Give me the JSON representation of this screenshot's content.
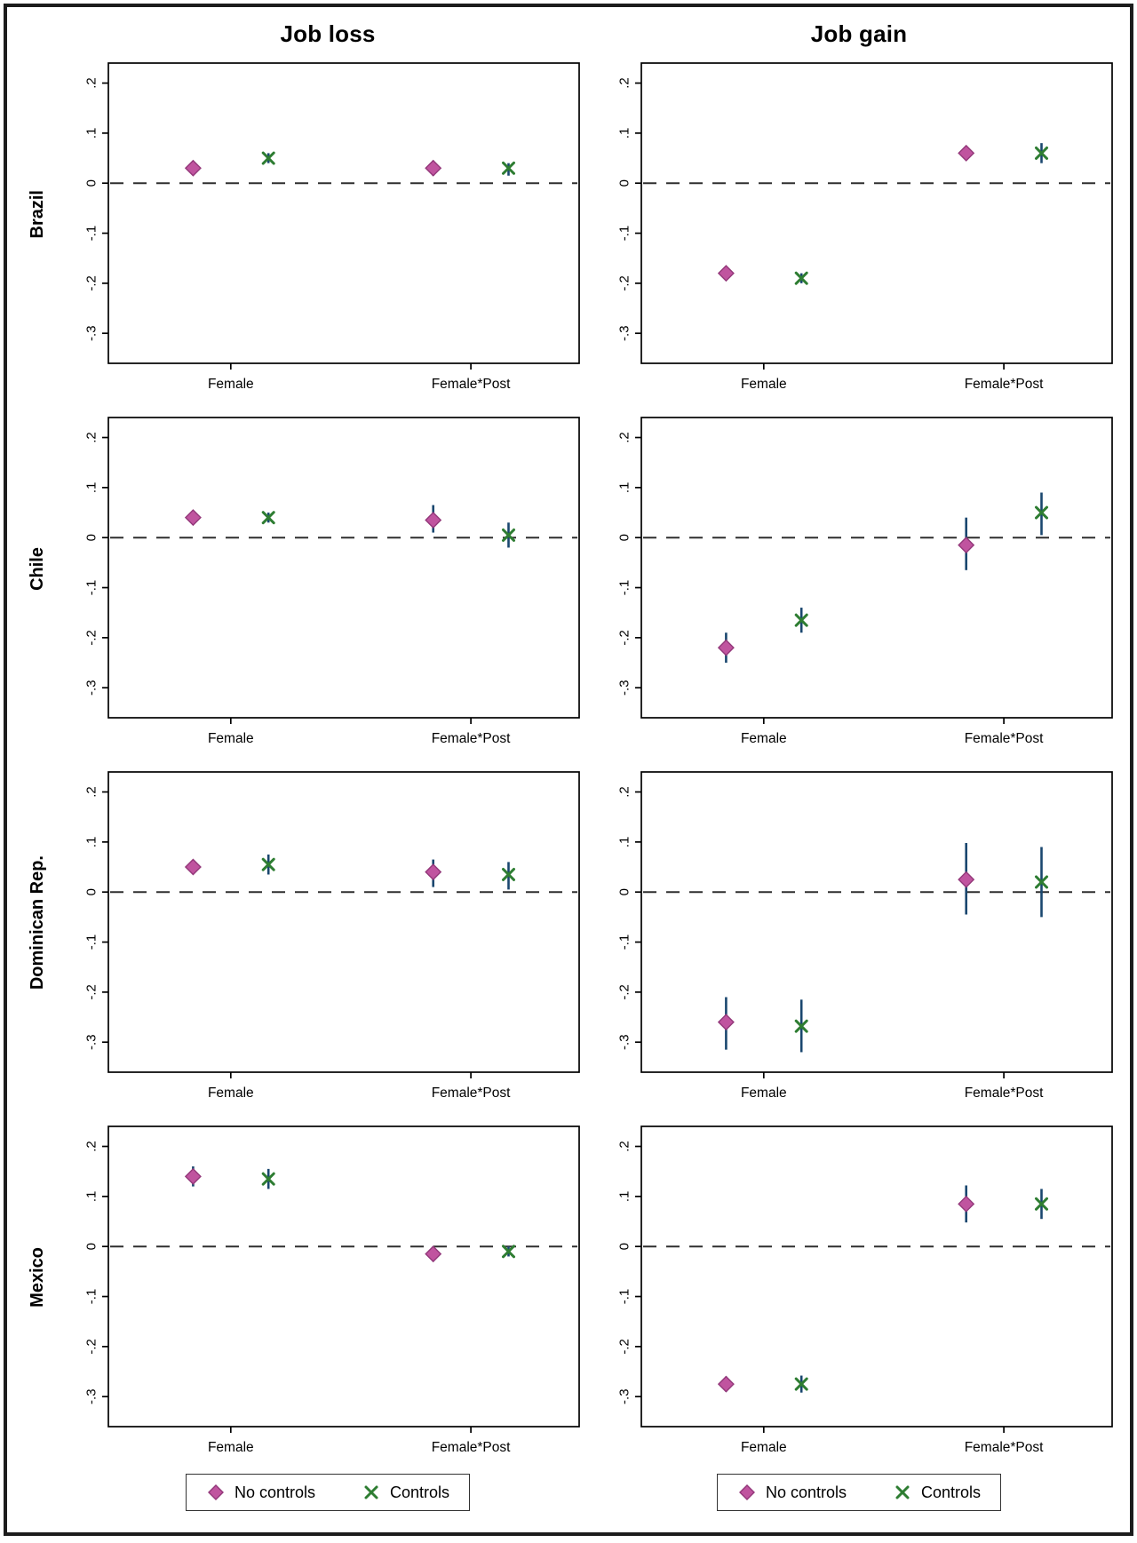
{
  "columns": [
    {
      "title": "Job loss"
    },
    {
      "title": "Job gain"
    }
  ],
  "rows": [
    {
      "label": "Brazil"
    },
    {
      "label": "Chile"
    },
    {
      "label": "Dominican Rep."
    },
    {
      "label": "Mexico"
    }
  ],
  "legend": {
    "items": [
      {
        "label": "No controls",
        "marker": "diamond"
      },
      {
        "label": "Controls",
        "marker": "x"
      }
    ]
  },
  "colors": {
    "no_controls": "#c0549f",
    "no_controls_edge": "#93387a",
    "controls": "#2e7d32",
    "ci": "#1a476f",
    "zero_line": "#2f2f2f",
    "axis": "#000000",
    "border": "#1c1c1c"
  },
  "chart_data": {
    "type": "scatter",
    "layout": "4 rows (countries) x 2 columns (outcomes), coefficient plots with 95% CI bars and dashed zero line",
    "x_categories": [
      "Female",
      "Female*Post"
    ],
    "series": [
      {
        "name": "No controls",
        "marker": "diamond",
        "color": "#c0549f"
      },
      {
        "name": "Controls",
        "marker": "x",
        "color": "#2e7d32"
      }
    ],
    "axes": {
      "ylim": [
        -0.36,
        0.24
      ],
      "y_ticks": [
        0.2,
        0.1,
        0,
        -0.1,
        -0.2,
        -0.3
      ],
      "y_tick_labels": [
        ".2",
        ".1",
        "0",
        "-.1",
        "-.2",
        "-.3"
      ],
      "x_positions": [
        0.26,
        0.77
      ],
      "series_offset": 0.08,
      "zero_line": true,
      "grid": false,
      "legend_position": "bottom"
    },
    "panels": [
      {
        "row": "Brazil",
        "col": "Job loss",
        "points": [
          {
            "x": "Female",
            "series": "No controls",
            "est": 0.03,
            "ci": [
              0.02,
              0.04
            ]
          },
          {
            "x": "Female",
            "series": "Controls",
            "est": 0.05,
            "ci": [
              0.04,
              0.06
            ]
          },
          {
            "x": "Female*Post",
            "series": "No controls",
            "est": 0.03,
            "ci": [
              0.015,
              0.045
            ]
          },
          {
            "x": "Female*Post",
            "series": "Controls",
            "est": 0.03,
            "ci": [
              0.015,
              0.04
            ]
          }
        ]
      },
      {
        "row": "Brazil",
        "col": "Job gain",
        "points": [
          {
            "x": "Female",
            "series": "No controls",
            "est": -0.18,
            "ci": [
              -0.19,
              -0.17
            ]
          },
          {
            "x": "Female",
            "series": "Controls",
            "est": -0.19,
            "ci": [
              -0.2,
              -0.18
            ]
          },
          {
            "x": "Female*Post",
            "series": "No controls",
            "est": 0.06,
            "ci": [
              0.05,
              0.07
            ]
          },
          {
            "x": "Female*Post",
            "series": "Controls",
            "est": 0.06,
            "ci": [
              0.04,
              0.08
            ]
          }
        ]
      },
      {
        "row": "Chile",
        "col": "Job loss",
        "points": [
          {
            "x": "Female",
            "series": "No controls",
            "est": 0.04,
            "ci": [
              0.03,
              0.05
            ]
          },
          {
            "x": "Female",
            "series": "Controls",
            "est": 0.04,
            "ci": [
              0.03,
              0.05
            ]
          },
          {
            "x": "Female*Post",
            "series": "No controls",
            "est": 0.035,
            "ci": [
              0.01,
              0.065
            ]
          },
          {
            "x": "Female*Post",
            "series": "Controls",
            "est": 0.005,
            "ci": [
              -0.02,
              0.03
            ]
          }
        ]
      },
      {
        "row": "Chile",
        "col": "Job gain",
        "points": [
          {
            "x": "Female",
            "series": "No controls",
            "est": -0.22,
            "ci": [
              -0.25,
              -0.19
            ]
          },
          {
            "x": "Female",
            "series": "Controls",
            "est": -0.165,
            "ci": [
              -0.19,
              -0.14
            ]
          },
          {
            "x": "Female*Post",
            "series": "No controls",
            "est": -0.015,
            "ci": [
              -0.065,
              0.04
            ]
          },
          {
            "x": "Female*Post",
            "series": "Controls",
            "est": 0.05,
            "ci": [
              0.005,
              0.09
            ]
          }
        ]
      },
      {
        "row": "Dominican Rep.",
        "col": "Job loss",
        "points": [
          {
            "x": "Female",
            "series": "No controls",
            "est": 0.05,
            "ci": [
              0.04,
              0.06
            ]
          },
          {
            "x": "Female",
            "series": "Controls",
            "est": 0.055,
            "ci": [
              0.035,
              0.075
            ]
          },
          {
            "x": "Female*Post",
            "series": "No controls",
            "est": 0.04,
            "ci": [
              0.01,
              0.065
            ]
          },
          {
            "x": "Female*Post",
            "series": "Controls",
            "est": 0.035,
            "ci": [
              0.005,
              0.06
            ]
          }
        ]
      },
      {
        "row": "Dominican Rep.",
        "col": "Job gain",
        "points": [
          {
            "x": "Female",
            "series": "No controls",
            "est": -0.26,
            "ci": [
              -0.315,
              -0.21
            ]
          },
          {
            "x": "Female",
            "series": "Controls",
            "est": -0.268,
            "ci": [
              -0.32,
              -0.215
            ]
          },
          {
            "x": "Female*Post",
            "series": "No controls",
            "est": 0.025,
            "ci": [
              -0.045,
              0.098
            ]
          },
          {
            "x": "Female*Post",
            "series": "Controls",
            "est": 0.02,
            "ci": [
              -0.05,
              0.09
            ]
          }
        ]
      },
      {
        "row": "Mexico",
        "col": "Job loss",
        "points": [
          {
            "x": "Female",
            "series": "No controls",
            "est": 0.14,
            "ci": [
              0.12,
              0.16
            ]
          },
          {
            "x": "Female",
            "series": "Controls",
            "est": 0.135,
            "ci": [
              0.115,
              0.155
            ]
          },
          {
            "x": "Female*Post",
            "series": "No controls",
            "est": -0.015,
            "ci": [
              -0.03,
              0.0
            ]
          },
          {
            "x": "Female*Post",
            "series": "Controls",
            "est": -0.01,
            "ci": [
              -0.02,
              0.0
            ]
          }
        ]
      },
      {
        "row": "Mexico",
        "col": "Job gain",
        "points": [
          {
            "x": "Female",
            "series": "No controls",
            "est": -0.275,
            "ci": [
              -0.29,
              -0.26
            ]
          },
          {
            "x": "Female",
            "series": "Controls",
            "est": -0.275,
            "ci": [
              -0.292,
              -0.258
            ]
          },
          {
            "x": "Female*Post",
            "series": "No controls",
            "est": 0.085,
            "ci": [
              0.048,
              0.122
            ]
          },
          {
            "x": "Female*Post",
            "series": "Controls",
            "est": 0.085,
            "ci": [
              0.055,
              0.115
            ]
          }
        ]
      }
    ]
  }
}
